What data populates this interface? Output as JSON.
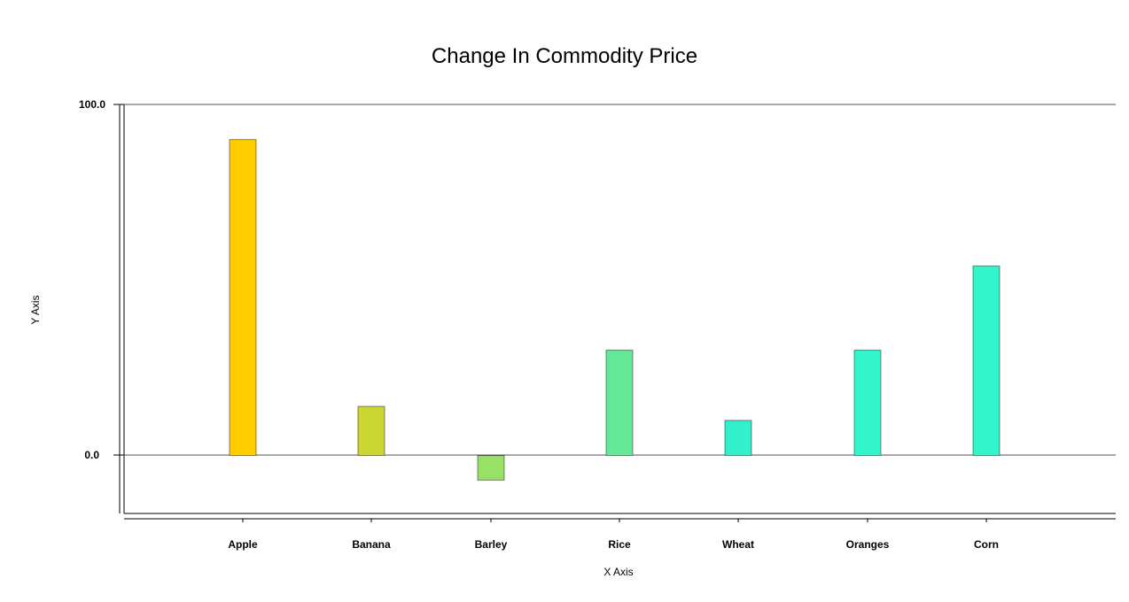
{
  "chart_data": {
    "type": "bar",
    "title": "Change In Commodity Price",
    "xlabel": "X Axis",
    "ylabel": "Y Axis",
    "categories": [
      "Apple",
      "Banana",
      "Barley",
      "Rice",
      "Wheat",
      "Oranges",
      "Corn"
    ],
    "values": [
      90,
      14,
      -7,
      30,
      10,
      30,
      54
    ],
    "colors": [
      "#ffcc00",
      "#ccd633",
      "#99e066",
      "#66e899",
      "#33f0cc",
      "#33f5cc",
      "#33f5cc"
    ],
    "ylim": [
      -16.5,
      100
    ],
    "yticks": [
      "100.0",
      "0.0"
    ],
    "grid": false,
    "legend": "none"
  }
}
